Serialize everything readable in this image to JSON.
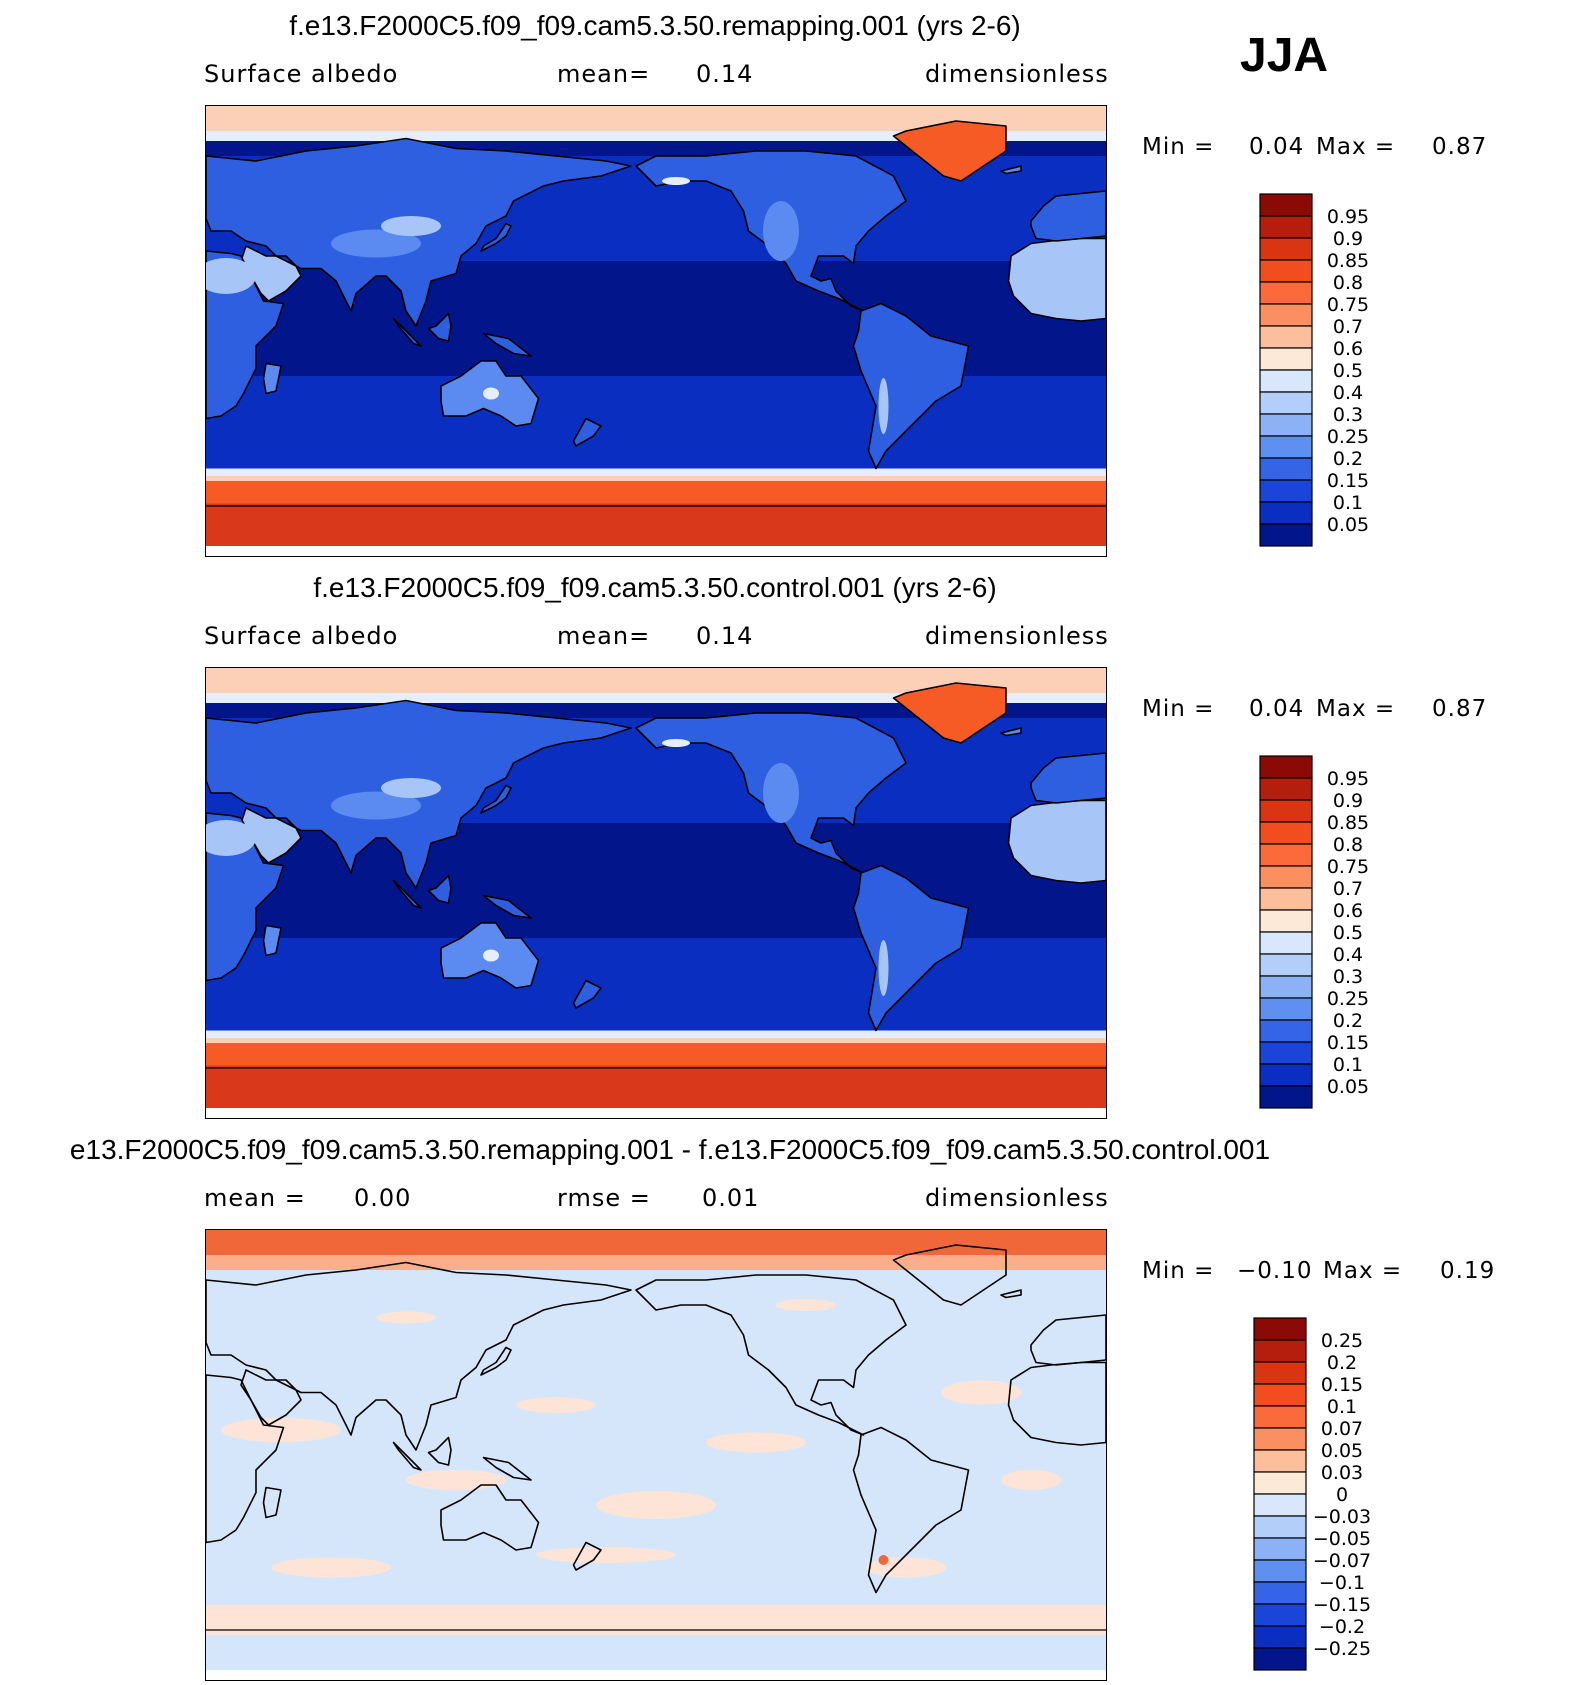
{
  "season": "JJA",
  "colors": {
    "ocean_deep": "#02158a",
    "ocean": "#0a2fc0",
    "land_low": "#2d5fe0",
    "land_mid": "#5b8af0",
    "land_high": "#a7c6f7",
    "snow": "#e6eefb",
    "ice": "#f65a25",
    "ice_dark": "#d9381a",
    "ice_edge": "#fbd0b7",
    "coast": "#000000",
    "diff_pos": "#fde4d6",
    "diff_neg": "#d6e6fa",
    "diff_red": "#f0683a"
  },
  "panels": [
    {
      "id": "remapping",
      "title": "f.e13.F2000C5.f09_f09.cam5.3.50.remapping.001 (yrs 2-6)",
      "left_label": "Surface  albedo",
      "mid_label": "mean=",
      "mid_value": "0.14",
      "right_label": "dimensionless",
      "min_label": "Min =",
      "min_value": "0.04",
      "max_label": "Max =",
      "max_value": "0.87",
      "colorbar": {
        "labels": [
          "0.95",
          "0.9",
          "0.85",
          "0.8",
          "0.75",
          "0.7",
          "0.6",
          "0.5",
          "0.4",
          "0.3",
          "0.25",
          "0.2",
          "0.15",
          "0.1",
          "0.05"
        ],
        "colors": [
          "#8b0a05",
          "#b51d0c",
          "#d93512",
          "#f24d1e",
          "#fb6a3a",
          "#fc8f62",
          "#fdbe9b",
          "#fde9d8",
          "#d8e7fb",
          "#b3cef8",
          "#8cb2f5",
          "#5f8ff0",
          "#3564e6",
          "#1a45d8",
          "#0a2ec0",
          "#02158a"
        ]
      }
    },
    {
      "id": "control",
      "title": "f.e13.F2000C5.f09_f09.cam5.3.50.control.001 (yrs 2-6)",
      "left_label": "Surface  albedo",
      "mid_label": "mean=",
      "mid_value": "0.14",
      "right_label": "dimensionless",
      "min_label": "Min =",
      "min_value": "0.04",
      "max_label": "Max =",
      "max_value": "0.87",
      "colorbar": {
        "labels": [
          "0.95",
          "0.9",
          "0.85",
          "0.8",
          "0.75",
          "0.7",
          "0.6",
          "0.5",
          "0.4",
          "0.3",
          "0.25",
          "0.2",
          "0.15",
          "0.1",
          "0.05"
        ],
        "colors": [
          "#8b0a05",
          "#b51d0c",
          "#d93512",
          "#f24d1e",
          "#fb6a3a",
          "#fc8f62",
          "#fdbe9b",
          "#fde9d8",
          "#d8e7fb",
          "#b3cef8",
          "#8cb2f5",
          "#5f8ff0",
          "#3564e6",
          "#1a45d8",
          "#0a2ec0",
          "#02158a"
        ]
      }
    },
    {
      "id": "difference",
      "title": "e13.F2000C5.f09_f09.cam5.3.50.remapping.001 - f.e13.F2000C5.f09_f09.cam5.3.50.control.001",
      "left_label": "mean  =",
      "left_value": "0.00",
      "mid_label": "rmse  =",
      "mid_value": "0.01",
      "right_label": "dimensionless",
      "min_label": "Min =",
      "min_value": "−0.10",
      "max_label": "Max =",
      "max_value": "0.19",
      "colorbar": {
        "labels": [
          "0.25",
          "0.2",
          "0.15",
          "0.1",
          "0.07",
          "0.05",
          "0.03",
          "0",
          "−0.03",
          "−0.05",
          "−0.07",
          "−0.1",
          "−0.15",
          "−0.2",
          "−0.25"
        ],
        "colors": [
          "#8b0a05",
          "#b51d0c",
          "#d93512",
          "#f24d1e",
          "#fb6a3a",
          "#fc8f62",
          "#fdbe9b",
          "#fde9d8",
          "#d8e7fb",
          "#b3cef8",
          "#8cb2f5",
          "#5f8ff0",
          "#3564e6",
          "#1a45d8",
          "#0a2ec0",
          "#02158a"
        ]
      }
    }
  ]
}
